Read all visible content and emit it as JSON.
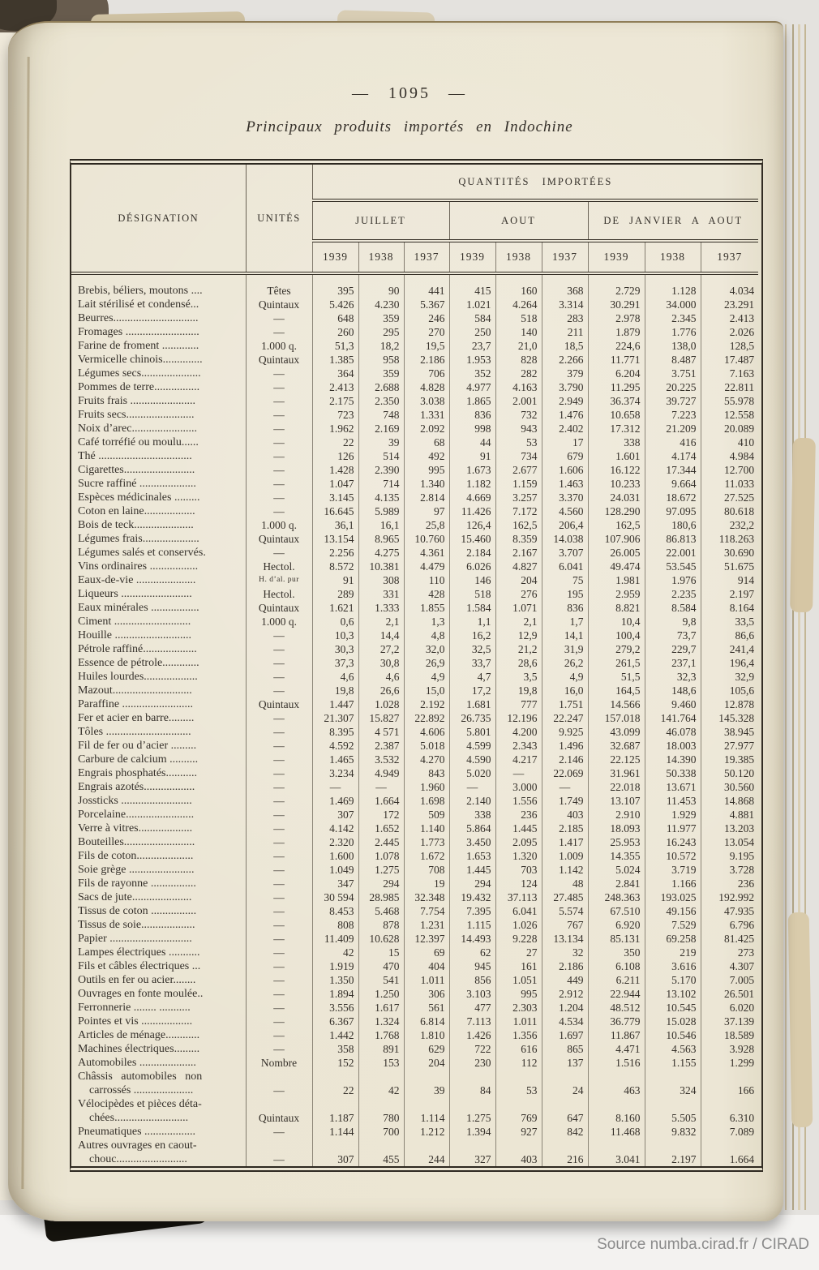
{
  "page": {
    "page_number": "— 1095 —",
    "title": "Principaux produits importés en Indochine",
    "attribution": "Source numba.cirad.fr / CIRAD"
  },
  "colors": {
    "paper": "#ebe5d2",
    "ink": "#35302a",
    "scanner_background": "#e4e2de",
    "attribution_gray": "#8b8b8b"
  },
  "table": {
    "headers": {
      "designation": "DÉSIGNATION",
      "unites": "UNITÉS",
      "quantites": "QUANTITÉS IMPORTÉES",
      "groups": [
        "JUILLET",
        "AOUT",
        "DE JANVIER A AOUT"
      ],
      "years": [
        "1939",
        "1938",
        "1937"
      ]
    },
    "rows": [
      {
        "label": "Brebis, béliers, moutons ....",
        "unit": "Têtes",
        "values": [
          "395",
          "90",
          "441",
          "415",
          "160",
          "368",
          "2.729",
          "1.128",
          "4.034"
        ]
      },
      {
        "label": "Lait stérilisé et condensé...",
        "unit": "Quintaux",
        "values": [
          "5.426",
          "4.230",
          "5.367",
          "1.021",
          "4.264",
          "3.314",
          "30.291",
          "34.000",
          "23.291"
        ]
      },
      {
        "label": "Beurres..............................",
        "unit": "—",
        "values": [
          "648",
          "359",
          "246",
          "584",
          "518",
          "283",
          "2.978",
          "2.345",
          "2.413"
        ]
      },
      {
        "label": "Fromages ..........................",
        "unit": "—",
        "values": [
          "260",
          "295",
          "270",
          "250",
          "140",
          "211",
          "1.879",
          "1.776",
          "2.026"
        ]
      },
      {
        "label": "Farine de froment .............",
        "unit": "1.000 q.",
        "values": [
          "51,3",
          "18,2",
          "19,5",
          "23,7",
          "21,0",
          "18,5",
          "224,6",
          "138,0",
          "128,5"
        ]
      },
      {
        "label": "Vermicelle chinois..............",
        "unit": "Quintaux",
        "values": [
          "1.385",
          "958",
          "2.186",
          "1.953",
          "828",
          "2.266",
          "11.771",
          "8.487",
          "17.487"
        ]
      },
      {
        "label": "Légumes secs.....................",
        "unit": "—",
        "values": [
          "364",
          "359",
          "706",
          "352",
          "282",
          "379",
          "6.204",
          "3.751",
          "7.163"
        ]
      },
      {
        "label": "Pommes de terre................",
        "unit": "—",
        "values": [
          "2.413",
          "2.688",
          "4.828",
          "4.977",
          "4.163",
          "3.790",
          "11.295",
          "20.225",
          "22.811"
        ]
      },
      {
        "label": "Fruits frais .......................",
        "unit": "—",
        "values": [
          "2.175",
          "2.350",
          "3.038",
          "1.865",
          "2.001",
          "2.949",
          "36.374",
          "39.727",
          "55.978"
        ]
      },
      {
        "label": "Fruits secs........................",
        "unit": "—",
        "values": [
          "723",
          "748",
          "1.331",
          "836",
          "732",
          "1.476",
          "10.658",
          "7.223",
          "12.558"
        ]
      },
      {
        "label": "Noix d’arec.......................",
        "unit": "—",
        "values": [
          "1.962",
          "2.169",
          "2.092",
          "998",
          "943",
          "2.402",
          "17.312",
          "21.209",
          "20.089"
        ]
      },
      {
        "label": "Café torréfié ou moulu......",
        "unit": "—",
        "values": [
          "22",
          "39",
          "68",
          "44",
          "53",
          "17",
          "338",
          "416",
          "410"
        ]
      },
      {
        "label": "Thé .................................",
        "unit": "—",
        "values": [
          "126",
          "514",
          "492",
          "91",
          "734",
          "679",
          "1.601",
          "4.174",
          "4.984"
        ]
      },
      {
        "label": "Cigarettes.........................",
        "unit": "—",
        "values": [
          "1.428",
          "2.390",
          "995",
          "1.673",
          "2.677",
          "1.606",
          "16.122",
          "17.344",
          "12.700"
        ]
      },
      {
        "label": "Sucre raffiné ....................",
        "unit": "—",
        "values": [
          "1.047",
          "714",
          "1.340",
          "1.182",
          "1.159",
          "1.463",
          "10.233",
          "9.664",
          "11.033"
        ]
      },
      {
        "label": "Espèces médicinales .........",
        "unit": "—",
        "values": [
          "3.145",
          "4.135",
          "2.814",
          "4.669",
          "3.257",
          "3.370",
          "24.031",
          "18.672",
          "27.525"
        ]
      },
      {
        "label": "Coton en laine..................",
        "unit": "—",
        "values": [
          "16.645",
          "5.989",
          "97",
          "11.426",
          "7.172",
          "4.560",
          "128.290",
          "97.095",
          "80.618"
        ]
      },
      {
        "label": "Bois de teck.....................",
        "unit": "1.000 q.",
        "values": [
          "36,1",
          "16,1",
          "25,8",
          "126,4",
          "162,5",
          "206,4",
          "162,5",
          "180,6",
          "232,2"
        ]
      },
      {
        "label": "Légumes frais....................",
        "unit": "Quintaux",
        "values": [
          "13.154",
          "8.965",
          "10.760",
          "15.460",
          "8.359",
          "14.038",
          "107.906",
          "86.813",
          "118.263"
        ]
      },
      {
        "label": "Légumes salés et conservés.",
        "unit": "—",
        "values": [
          "2.256",
          "4.275",
          "4.361",
          "2.184",
          "2.167",
          "3.707",
          "26.005",
          "22.001",
          "30.690"
        ]
      },
      {
        "label": "Vins ordinaires .................",
        "unit": "Hectol.",
        "values": [
          "8.572",
          "10.381",
          "4.479",
          "6.026",
          "4.827",
          "6.041",
          "49.474",
          "53.545",
          "51.675"
        ]
      },
      {
        "label": "Eaux-de-vie .....................",
        "unit": "H. d’al. pur",
        "values": [
          "91",
          "308",
          "110",
          "146",
          "204",
          "75",
          "1.981",
          "1.976",
          "914"
        ]
      },
      {
        "label": "Liqueurs .........................",
        "unit": "Hectol.",
        "values": [
          "289",
          "331",
          "428",
          "518",
          "276",
          "195",
          "2.959",
          "2.235",
          "2.197"
        ]
      },
      {
        "label": "Eaux minérales .................",
        "unit": "Quintaux",
        "values": [
          "1.621",
          "1.333",
          "1.855",
          "1.584",
          "1.071",
          "836",
          "8.821",
          "8.584",
          "8.164"
        ]
      },
      {
        "label": "Ciment ...........................",
        "unit": "1.000 q.",
        "values": [
          "0,6",
          "2,1",
          "1,3",
          "1,1",
          "2,1",
          "1,7",
          "10,4",
          "9,8",
          "33,5"
        ]
      },
      {
        "label": "Houille ...........................",
        "unit": "—",
        "values": [
          "10,3",
          "14,4",
          "4,8",
          "16,2",
          "12,9",
          "14,1",
          "100,4",
          "73,7",
          "86,6"
        ]
      },
      {
        "label": "Pétrole raffiné...................",
        "unit": "—",
        "values": [
          "30,3",
          "27,2",
          "32,0",
          "32,5",
          "21,2",
          "31,9",
          "279,2",
          "229,7",
          "241,4"
        ]
      },
      {
        "label": "Essence de pétrole.............",
        "unit": "—",
        "values": [
          "37,3",
          "30,8",
          "26,9",
          "33,7",
          "28,6",
          "26,2",
          "261,5",
          "237,1",
          "196,4"
        ]
      },
      {
        "label": "Huiles lourdes...................",
        "unit": "—",
        "values": [
          "4,6",
          "4,6",
          "4,9",
          "4,7",
          "3,5",
          "4,9",
          "51,5",
          "32,3",
          "32,9"
        ]
      },
      {
        "label": "Mazout............................",
        "unit": "—",
        "values": [
          "19,8",
          "26,6",
          "15,0",
          "17,2",
          "19,8",
          "16,0",
          "164,5",
          "148,6",
          "105,6"
        ]
      },
      {
        "label": "Paraffine .........................",
        "unit": "Quintaux",
        "values": [
          "1.447",
          "1.028",
          "2.192",
          "1.681",
          "777",
          "1.751",
          "14.566",
          "9.460",
          "12.878"
        ]
      },
      {
        "label": "Fer et acier en barre.........",
        "unit": "—",
        "values": [
          "21.307",
          "15.827",
          "22.892",
          "26.735",
          "12.196",
          "22.247",
          "157.018",
          "141.764",
          "145.328"
        ]
      },
      {
        "label": "Tôles ..............................",
        "unit": "—",
        "values": [
          "8.395",
          "4 571",
          "4.606",
          "5.801",
          "4.200",
          "9.925",
          "43.099",
          "46.078",
          "38.945"
        ]
      },
      {
        "label": "Fil de fer ou d’acier .........",
        "unit": "—",
        "values": [
          "4.592",
          "2.387",
          "5.018",
          "4.599",
          "2.343",
          "1.496",
          "32.687",
          "18.003",
          "27.977"
        ]
      },
      {
        "label": "Carbure de calcium ..........",
        "unit": "—",
        "values": [
          "1.465",
          "3.532",
          "4.270",
          "4.590",
          "4.217",
          "2.146",
          "22.125",
          "14.390",
          "19.385"
        ]
      },
      {
        "label": "Engrais phosphatés...........",
        "unit": "—",
        "values": [
          "3.234",
          "4.949",
          "843",
          "5.020",
          "—",
          "22.069",
          "31.961",
          "50.338",
          "50.120"
        ]
      },
      {
        "label": "Engrais azotés..................",
        "unit": "—",
        "values": [
          "—",
          "—",
          "1.960",
          "—",
          "3.000",
          "—",
          "22.018",
          "13.671",
          "30.560"
        ]
      },
      {
        "label": "Jossticks .........................",
        "unit": "—",
        "values": [
          "1.469",
          "1.664",
          "1.698",
          "2.140",
          "1.556",
          "1.749",
          "13.107",
          "11.453",
          "14.868"
        ]
      },
      {
        "label": "Porcelaine........................",
        "unit": "—",
        "values": [
          "307",
          "172",
          "509",
          "338",
          "236",
          "403",
          "2.910",
          "1.929",
          "4.881"
        ]
      },
      {
        "label": "Verre à vitres...................",
        "unit": "—",
        "values": [
          "4.142",
          "1.652",
          "1.140",
          "5.864",
          "1.445",
          "2.185",
          "18.093",
          "11.977",
          "13.203"
        ]
      },
      {
        "label": "Bouteilles.........................",
        "unit": "—",
        "values": [
          "2.320",
          "2.445",
          "1.773",
          "3.450",
          "2.095",
          "1.417",
          "25.953",
          "16.243",
          "13.054"
        ]
      },
      {
        "label": "Fils de coton....................",
        "unit": "—",
        "values": [
          "1.600",
          "1.078",
          "1.672",
          "1.653",
          "1.320",
          "1.009",
          "14.355",
          "10.572",
          "9.195"
        ]
      },
      {
        "label": "Soie grège .......................",
        "unit": "—",
        "values": [
          "1.049",
          "1.275",
          "708",
          "1.445",
          "703",
          "1.142",
          "5.024",
          "3.719",
          "3.728"
        ]
      },
      {
        "label": "Fils de rayonne ................",
        "unit": "—",
        "values": [
          "347",
          "294",
          "19",
          "294",
          "124",
          "48",
          "2.841",
          "1.166",
          "236"
        ]
      },
      {
        "label": "Sacs de jute.....................",
        "unit": "—",
        "values": [
          "30 594",
          "28.985",
          "32.348",
          "19.432",
          "37.113",
          "27.485",
          "248.363",
          "193.025",
          "192.992"
        ]
      },
      {
        "label": "Tissus de coton ................",
        "unit": "—",
        "values": [
          "8.453",
          "5.468",
          "7.754",
          "7.395",
          "6.041",
          "5.574",
          "67.510",
          "49.156",
          "47.935"
        ]
      },
      {
        "label": "Tissus de soie...................",
        "unit": "—",
        "values": [
          "808",
          "878",
          "1.231",
          "1.115",
          "1.026",
          "767",
          "6.920",
          "7.529",
          "6.796"
        ]
      },
      {
        "label": "Papier .............................",
        "unit": "—",
        "values": [
          "11.409",
          "10.628",
          "12.397",
          "14.493",
          "9.228",
          "13.134",
          "85.131",
          "69.258",
          "81.425"
        ]
      },
      {
        "label": "Lampes électriques ...........",
        "unit": "—",
        "values": [
          "42",
          "15",
          "69",
          "62",
          "27",
          "32",
          "350",
          "219",
          "273"
        ]
      },
      {
        "label": "Fils et câbles électriques ...",
        "unit": "—",
        "values": [
          "1.919",
          "470",
          "404",
          "945",
          "161",
          "2.186",
          "6.108",
          "3.616",
          "4.307"
        ]
      },
      {
        "label": "Outils en fer ou acier........",
        "unit": "—",
        "values": [
          "1.350",
          "541",
          "1.011",
          "856",
          "1.051",
          "449",
          "6.211",
          "5.170",
          "7.005"
        ]
      },
      {
        "label": "Ouvrages en fonte moulée..",
        "unit": "—",
        "values": [
          "1.894",
          "1.250",
          "306",
          "3.103",
          "995",
          "2.912",
          "22.944",
          "13.102",
          "26.501"
        ]
      },
      {
        "label": "Ferronnerie ........ ...........",
        "unit": "—",
        "values": [
          "3.556",
          "1.617",
          "561",
          "477",
          "2.303",
          "1.204",
          "48.512",
          "10.545",
          "6.020"
        ]
      },
      {
        "label": "Pointes et vis ..................",
        "unit": "—",
        "values": [
          "6.367",
          "1.324",
          "6.814",
          "7.113",
          "1.011",
          "4.534",
          "36.779",
          "15.028",
          "37.139"
        ]
      },
      {
        "label": "Articles de ménage............",
        "unit": "—",
        "values": [
          "1.442",
          "1.768",
          "1.810",
          "1.426",
          "1.356",
          "1.697",
          "11.867",
          "10.546",
          "18.589"
        ]
      },
      {
        "label": "Machines électriques.........",
        "unit": "—",
        "values": [
          "358",
          "891",
          "629",
          "722",
          "616",
          "865",
          "4.471",
          "4.563",
          "3.928"
        ]
      },
      {
        "label": "Automobiles ....................",
        "unit": "Nombre",
        "values": [
          "152",
          "153",
          "204",
          "230",
          "112",
          "137",
          "1.516",
          "1.155",
          "1.299"
        ]
      },
      {
        "label": "Châssis   automobiles   non\n    carrossés .....................",
        "unit": "—",
        "values": [
          "22",
          "42",
          "39",
          "84",
          "53",
          "24",
          "463",
          "324",
          "166"
        ]
      },
      {
        "label": "Vélocipèdes et pièces déta-\n    chées..........................",
        "unit": "Quintaux",
        "values": [
          "1.187",
          "780",
          "1.114",
          "1.275",
          "769",
          "647",
          "8.160",
          "5.505",
          "6.310"
        ]
      },
      {
        "label": "Pneumatiques ..................",
        "unit": "—",
        "values": [
          "1.144",
          "700",
          "1.212",
          "1.394",
          "927",
          "842",
          "11.468",
          "9.832",
          "7.089"
        ]
      },
      {
        "label": "Autres ouvrages en caout-\n    chouc.........................",
        "unit": "—",
        "values": [
          "307",
          "455",
          "244",
          "327",
          "403",
          "216",
          "3.041",
          "2.197",
          "1.664"
        ]
      }
    ]
  }
}
